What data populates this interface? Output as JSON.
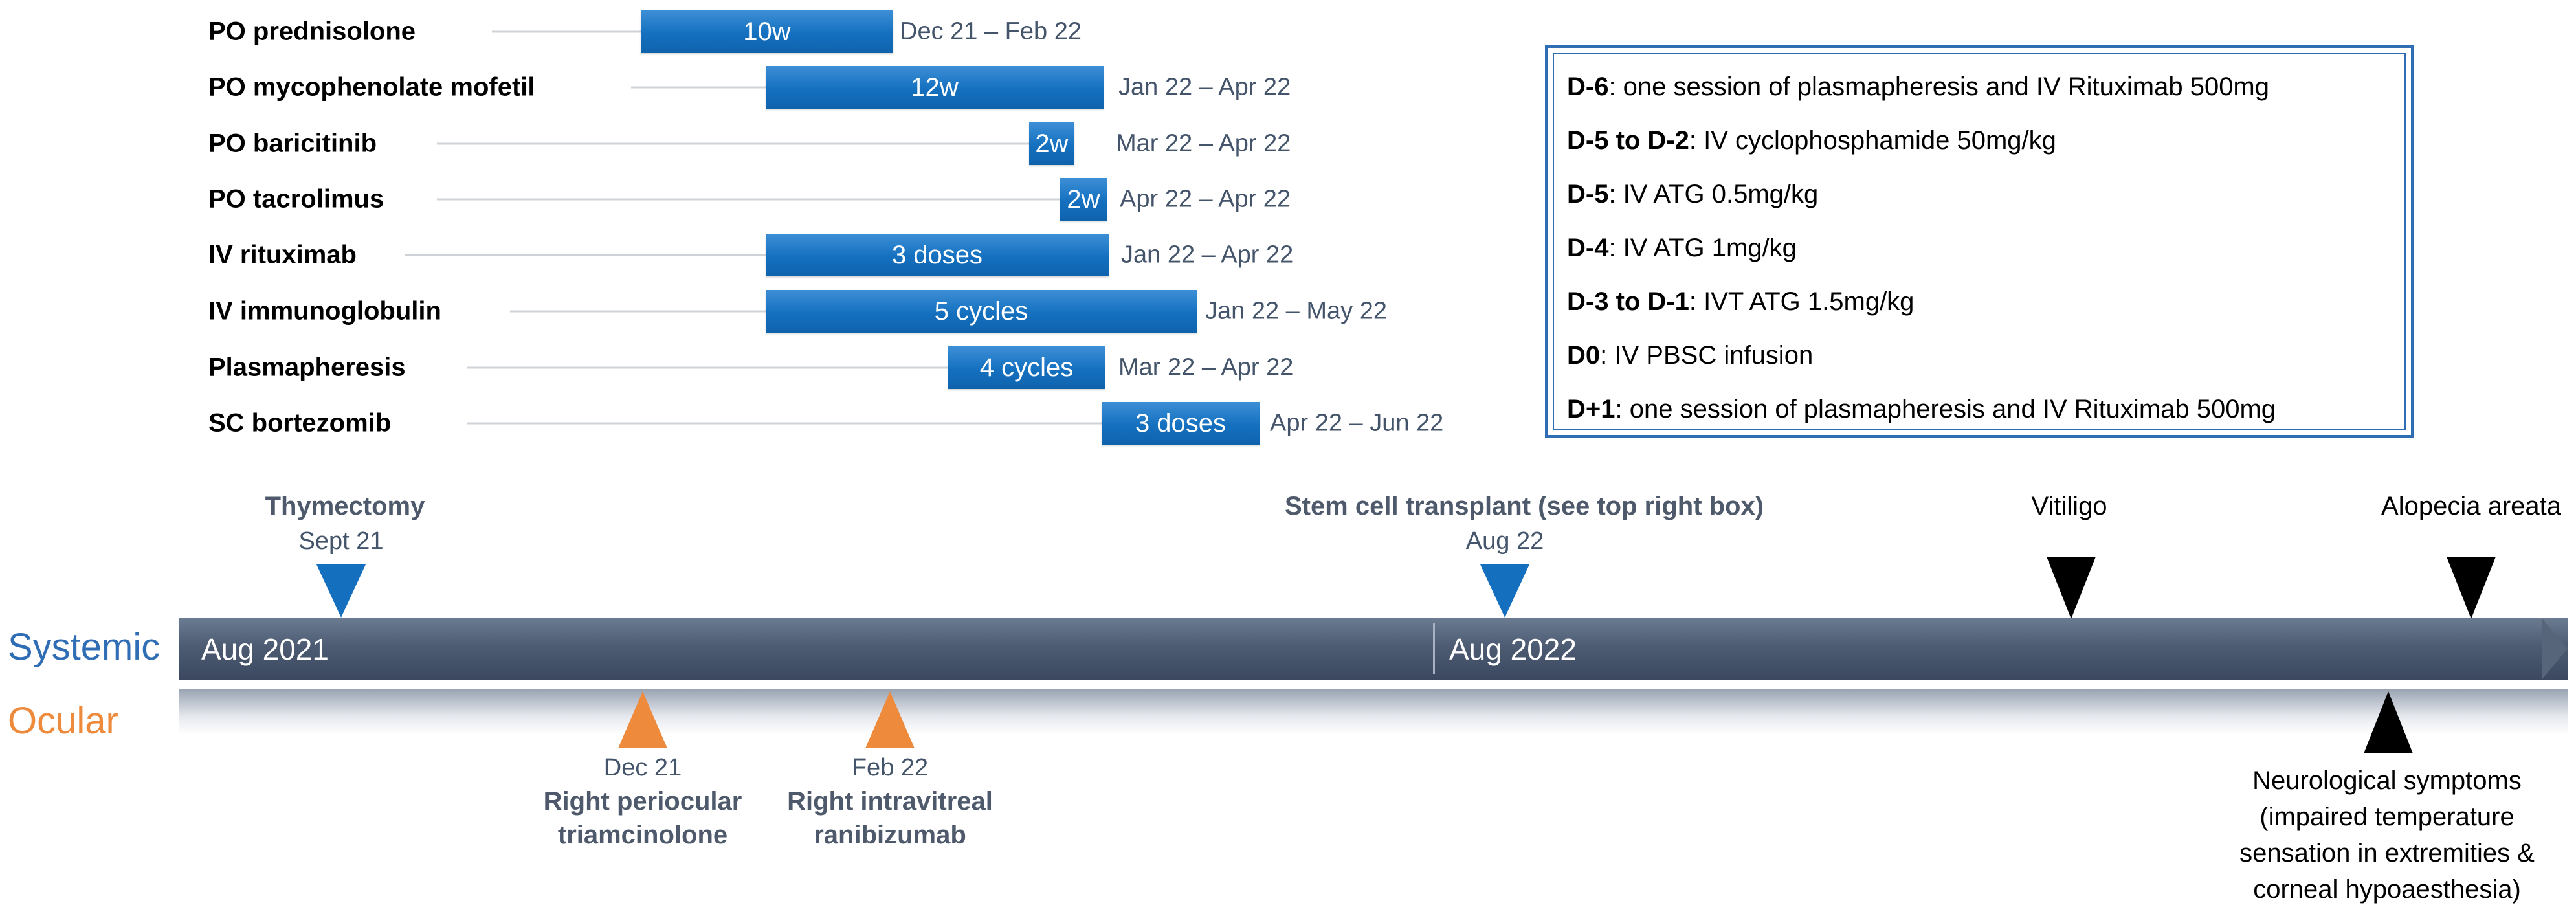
{
  "drugs": [
    {
      "name": "PO prednisolone",
      "bar_label": "10w",
      "dates": "Dec 21 – Feb 22"
    },
    {
      "name": "PO mycophenolate mofetil",
      "bar_label": "12w",
      "dates": "Jan 22 – Apr 22"
    },
    {
      "name": "PO baricitinib",
      "bar_label": "2w",
      "dates": "Mar 22 – Apr 22"
    },
    {
      "name": "PO tacrolimus",
      "bar_label": "2w",
      "dates": "Apr 22 – Apr 22"
    },
    {
      "name": "IV rituximab",
      "bar_label": "3 doses",
      "dates": "Jan 22 – Apr 22"
    },
    {
      "name": "IV immunoglobulin",
      "bar_label": "5 cycles",
      "dates": "Jan 22 – May 22"
    },
    {
      "name": "Plasmapheresis",
      "bar_label": "4 cycles",
      "dates": "Mar 22 – Apr 22"
    },
    {
      "name": "SC bortezomib",
      "bar_label": "3 doses",
      "dates": "Apr 22 – Jun 22"
    }
  ],
  "protocol": [
    {
      "day": "D-6",
      "text": ": one session of plasmapheresis and IV Rituximab 500mg"
    },
    {
      "day": "D-5 to D-2",
      "text": ": IV cyclophosphamide 50mg/kg"
    },
    {
      "day": "D-5",
      "text": ": IV ATG 0.5mg/kg"
    },
    {
      "day": "D-4",
      "text": ": IV ATG 1mg/kg"
    },
    {
      "day": "D-3 to D-1",
      "text": ": IVT ATG 1.5mg/kg"
    },
    {
      "day": "D0",
      "text": ": IV PBSC infusion"
    },
    {
      "day": "D+1",
      "text": ": one session of plasmapheresis and IV Rituximab 500mg"
    }
  ],
  "timeline": {
    "systemic_label": "Systemic",
    "ocular_label": "Ocular",
    "start_label": "Aug 2021",
    "mid_label": "Aug 2022"
  },
  "events": {
    "thymectomy": {
      "title": "Thymectomy",
      "date": "Sept 21"
    },
    "stem_cell": {
      "title": "Stem cell transplant (see top right box)",
      "date": "Aug 22"
    },
    "vitiligo": {
      "title": "Vitiligo"
    },
    "alopecia": {
      "title": "Alopecia areata"
    },
    "periocular": {
      "date": "Dec 21",
      "line1": "Right periocular",
      "line2": "triamcinolone"
    },
    "intravitreal": {
      "date": "Feb 22",
      "line1": "Right intravitreal",
      "line2": "ranibizumab"
    },
    "neuro": {
      "line1": "Neurological symptoms",
      "line2": "(impaired temperature",
      "line3": "sensation in extremities &",
      "line4": "corneal hypoaesthesia)"
    }
  },
  "colors": {
    "blue": "#1470bf",
    "orange": "#ee8a3c",
    "black": "#000000",
    "bar": "#4d5c73",
    "label_blue": "#2f6db4",
    "label_orange": "#ee8a3c"
  }
}
